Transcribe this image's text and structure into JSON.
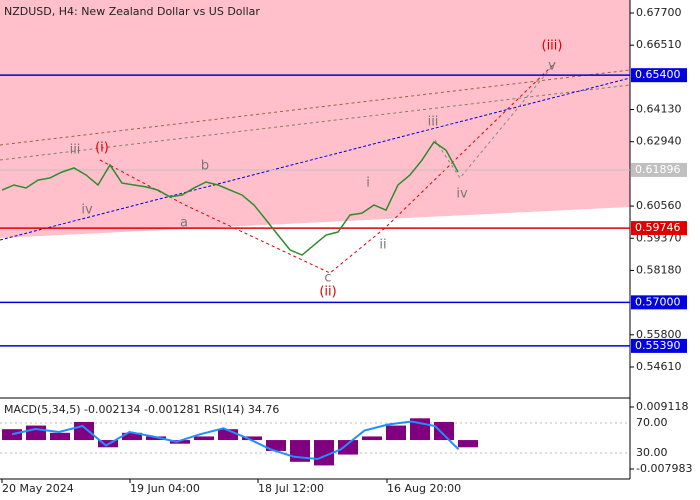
{
  "chart_data": {
    "type": "line",
    "title": "NZDUSD, H4:  New Zealand Dollar vs US Dollar",
    "color": "#2e8b2e",
    "values": [
      0.6115,
      0.6134,
      0.6123,
      0.6152,
      0.616,
      0.6182,
      0.6197,
      0.6171,
      0.6134,
      0.6208,
      0.6141,
      0.6134,
      0.6127,
      0.6115,
      0.609,
      0.6097,
      0.6123,
      0.6145,
      0.6134,
      0.6115,
      0.6097,
      0.606,
      0.6005,
      0.5949,
      0.5894,
      0.5875,
      0.5912,
      0.5949,
      0.596,
      0.6023,
      0.603,
      0.606,
      0.6041,
      0.6134,
      0.6171,
      0.6226,
      0.6293,
      0.6263,
      0.6182
    ],
    "x_labels": [
      "20 May 2024",
      "19 Jun 04:00",
      "18 Jul 12:00",
      "16 Aug 20:00"
    ],
    "ylim": [
      0.535,
      0.6818
    ],
    "yticks": [
      {
        "value": 0.677,
        "label": "0.67700"
      },
      {
        "value": 0.6651,
        "label": "0.66510"
      },
      {
        "value": 0.6413,
        "label": "0.64130"
      },
      {
        "value": 0.6294,
        "label": "0.62940"
      },
      {
        "value": 0.6056,
        "label": "0.60560"
      },
      {
        "value": 0.5937,
        "label": "0.59370"
      },
      {
        "value": 0.5818,
        "label": "0.58180"
      },
      {
        "value": 0.558,
        "label": "0.55800"
      },
      {
        "value": 0.5461,
        "label": "0.54610"
      }
    ],
    "levels": [
      {
        "value": 0.654,
        "label": "0.65400",
        "color": "#0000e0"
      },
      {
        "value": 0.61896,
        "label": "0.61896",
        "color": "#c0c0c0"
      },
      {
        "value": 0.59746,
        "label": "0.59746",
        "color": "#e00000"
      },
      {
        "value": 0.57,
        "label": "0.57000",
        "color": "#0000e0"
      },
      {
        "value": 0.5539,
        "label": "0.55390",
        "color": "#0000e0"
      }
    ],
    "waves": [
      "(i)",
      "(ii)",
      "(iii)",
      "iii",
      "iv",
      "a",
      "b",
      "c",
      "i",
      "ii",
      "iii",
      "iv",
      "v"
    ],
    "indicator": {
      "title": "MACD(5,34,5) -0.002134 -0.001281 RSI(14) 34.76",
      "ylim": [
        -0.010465,
        0.011049
      ],
      "yticks": [
        0.009118,
        -0.007983
      ],
      "histogram": {
        "color": "#800080",
        "values": [
          0.003,
          0.004,
          0.002,
          0.005,
          -0.002,
          0.002,
          0.001,
          -0.001,
          0.001,
          0.003,
          0.001,
          -0.003,
          -0.006,
          -0.007,
          -0.004,
          0.001,
          0.004,
          0.006,
          0.005,
          -0.002
        ]
      },
      "rsi": {
        "color": "#1e90ff",
        "ylim": [
          -3.3,
          100.7
        ],
        "yticks": [
          {
            "value": 70,
            "label": "70.00"
          },
          {
            "value": 30,
            "label": "30.00"
          }
        ],
        "values": [
          55,
          62,
          58,
          66,
          40,
          58,
          52,
          45,
          55,
          63,
          50,
          35,
          25,
          22,
          35,
          60,
          68,
          72,
          66,
          35
        ]
      }
    }
  }
}
